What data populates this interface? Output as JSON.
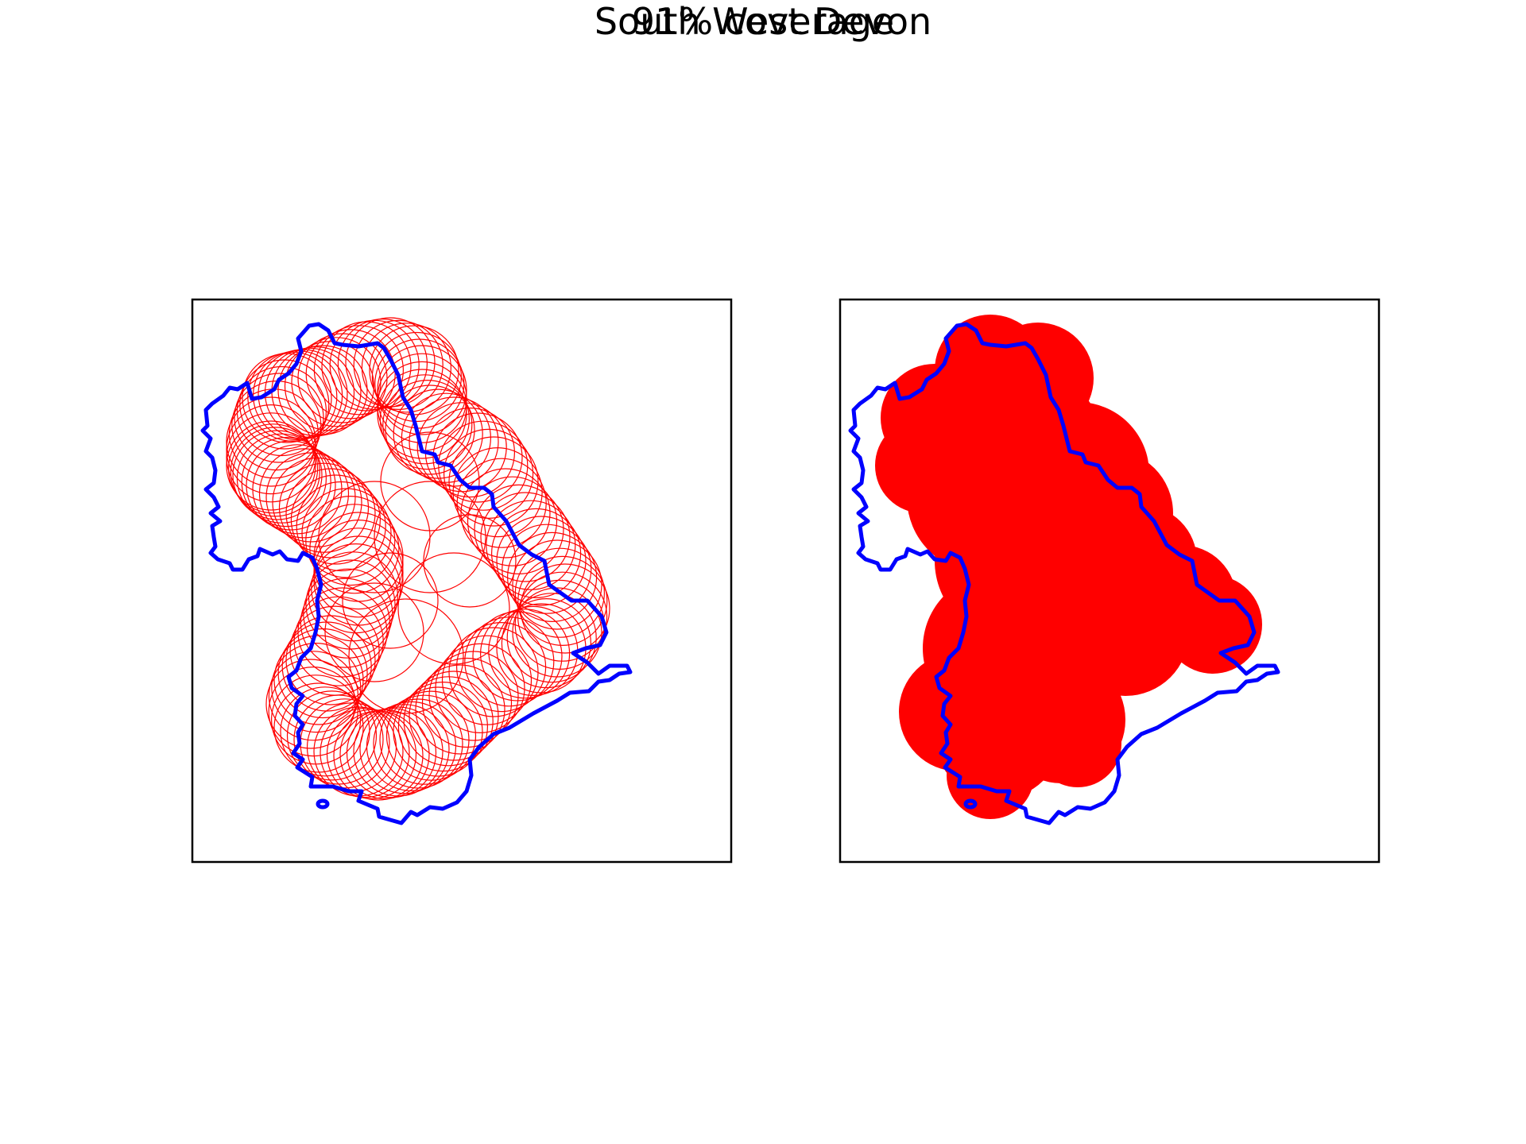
{
  "figure": {
    "title": "South West Devon",
    "subtitle": "91% coverage"
  },
  "colors": {
    "boundary": "#0000ff",
    "coverage": "#ff0000",
    "frame": "#000000",
    "background": "#ffffff"
  },
  "panels": [
    {
      "name": "circle-outlines",
      "style": "outline"
    },
    {
      "name": "coverage-union",
      "style": "filled"
    }
  ]
}
